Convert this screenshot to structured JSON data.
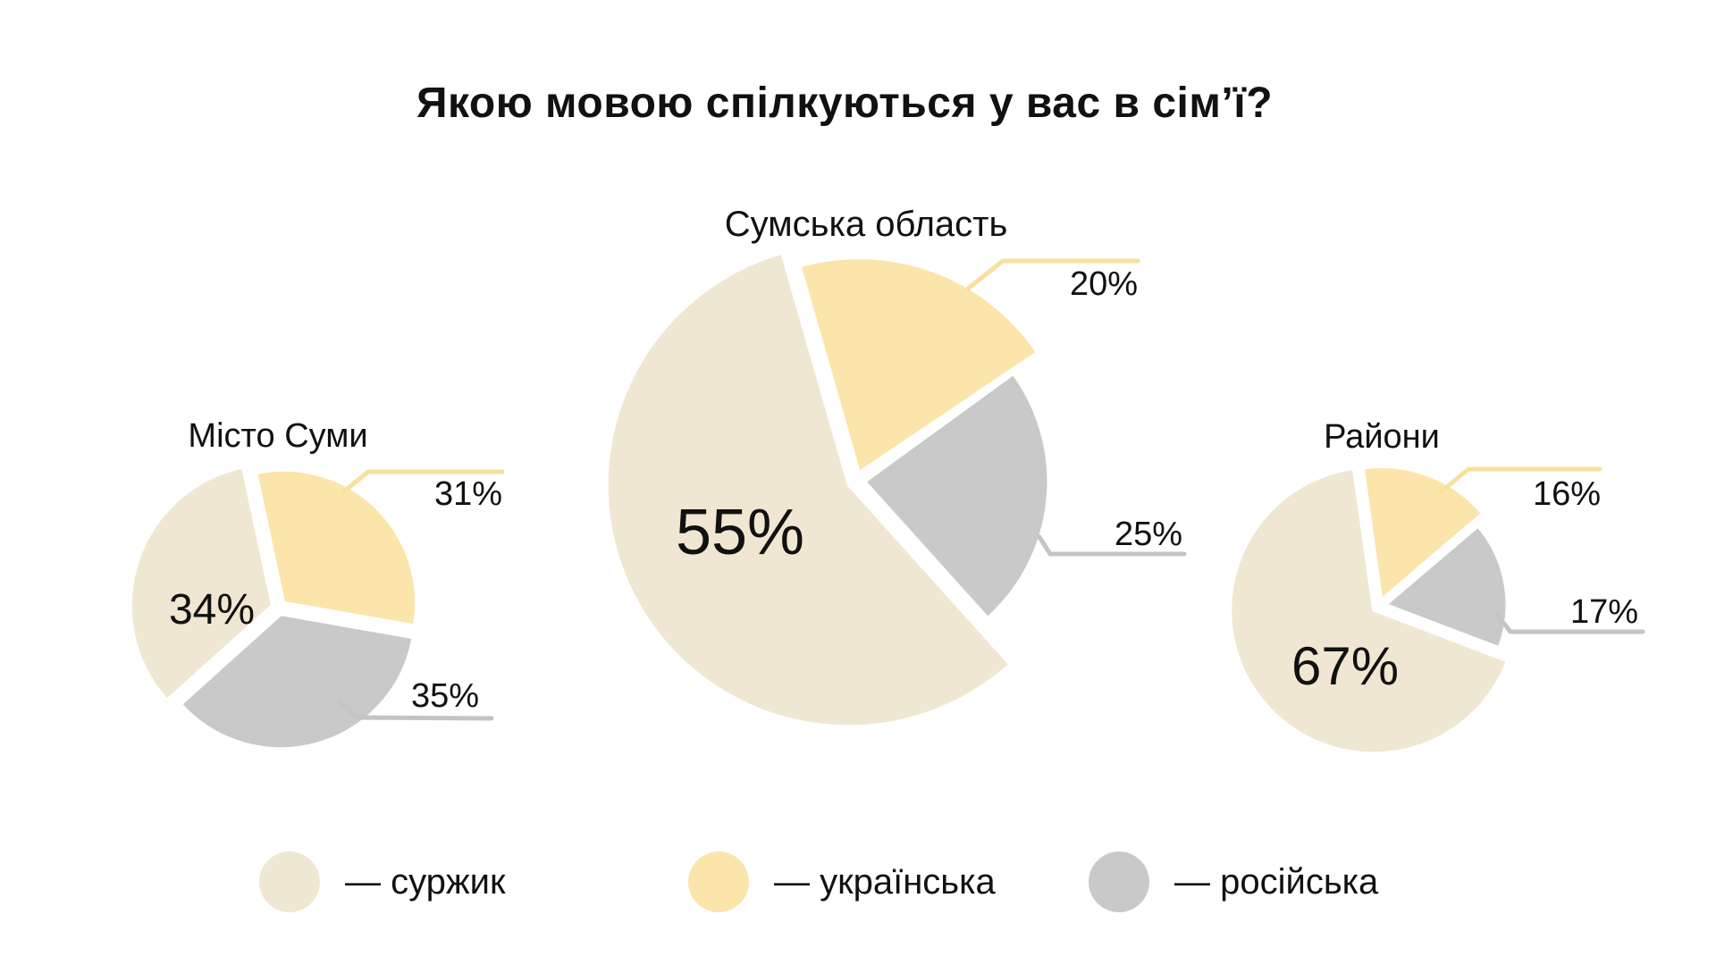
{
  "title": "Якою мовою спілкуються у вас в сім’ї?",
  "chart_data": [
    {
      "type": "pie",
      "title": "Місто Суми",
      "slices": [
        {
          "name": "суржик",
          "value": 34,
          "label": "34%",
          "color": "#F0E7D2"
        },
        {
          "name": "українська",
          "value": 31,
          "label": "31%",
          "color": "#FCE5AB"
        },
        {
          "name": "російська",
          "value": 35,
          "label": "35%",
          "color": "#C9C9C9"
        }
      ]
    },
    {
      "type": "pie",
      "title": "Сумська область",
      "slices": [
        {
          "name": "суржик",
          "value": 55,
          "label": "55%",
          "color": "#F0E7D2"
        },
        {
          "name": "українська",
          "value": 20,
          "label": "20%",
          "color": "#FCE5AB"
        },
        {
          "name": "російська",
          "value": 25,
          "label": "25%",
          "color": "#C9C9C9"
        }
      ]
    },
    {
      "type": "pie",
      "title": "Райони",
      "slices": [
        {
          "name": "суржик",
          "value": 67,
          "label": "67%",
          "color": "#F0E7D2"
        },
        {
          "name": "українська",
          "value": 16,
          "label": "16%",
          "color": "#FCE5AB"
        },
        {
          "name": "російська",
          "value": 17,
          "label": "17%",
          "color": "#C9C9C9"
        }
      ]
    }
  ],
  "legend": [
    {
      "label": "— суржик",
      "color": "#F0E7D2"
    },
    {
      "label": "— українська",
      "color": "#FCE5AB"
    },
    {
      "label": "— російська",
      "color": "#C9C9C9"
    }
  ],
  "colors": {
    "surzhyk": "#F0E7D2",
    "ukrainian": "#FCE5AB",
    "russian": "#C9C9C9",
    "callout_yellow": "#F9E0A1",
    "callout_gray": "#C4C4C4",
    "text": "#111111"
  }
}
